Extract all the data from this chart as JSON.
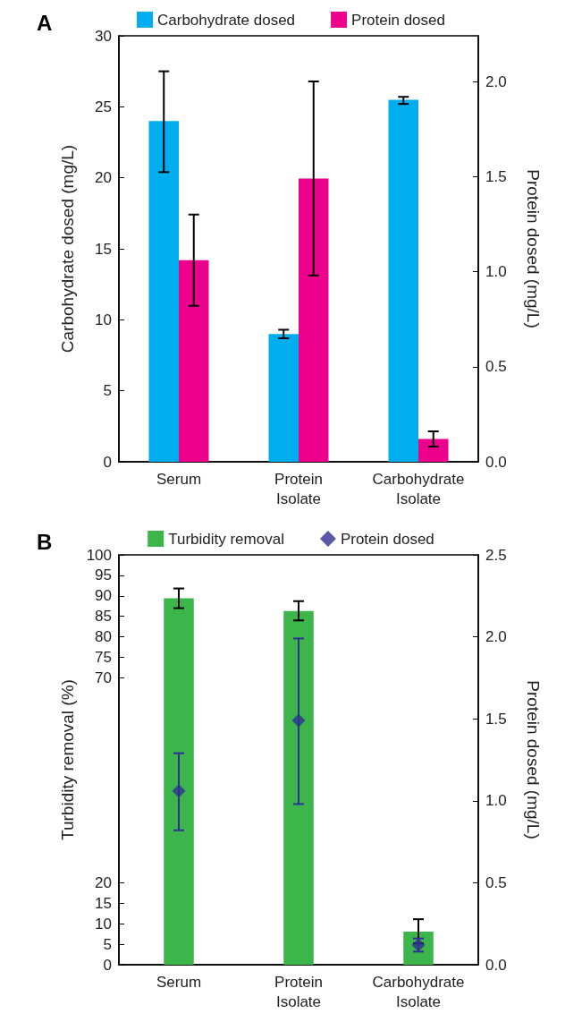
{
  "chart_data": [
    {
      "type": "bar",
      "title": "A",
      "categories": [
        "Serum",
        "Protein Isolate",
        "Carbohydrate Isolate"
      ],
      "ylabel": "Carbohydrate dosed (mg/L)",
      "y2label": "Protein dosed (mg/L)",
      "series": [
        {
          "name": "Carbohydrate dosed",
          "color": "#00aeef",
          "values": [
            24.0,
            9.0,
            25.5
          ],
          "errors": [
            [
              20.4,
              27.5
            ],
            [
              8.7,
              9.3
            ],
            [
              25.2,
              25.7
            ]
          ]
        },
        {
          "name": "Protein dosed",
          "color": "#ec008c",
          "axis": "y2",
          "values": [
            1.06,
            1.49,
            0.12
          ],
          "errors": [
            [
              0.82,
              1.3
            ],
            [
              0.98,
              2.0
            ],
            [
              0.08,
              0.16
            ]
          ]
        }
      ],
      "ylim": [
        0,
        30
      ],
      "yticks": [
        0,
        5,
        10,
        15,
        20,
        25,
        30
      ],
      "y2lim": [
        0,
        2.24
      ],
      "y2ticks": [
        {
          "value": 0,
          "label": "0.0"
        },
        {
          "value": 0.5,
          "label": "0.5"
        },
        {
          "value": 1,
          "label": "1.0"
        },
        {
          "value": 1.5,
          "label": "1.5"
        },
        {
          "value": 2,
          "label": "2.0"
        }
      ],
      "legend": "top",
      "grid": false
    },
    {
      "type": "bar",
      "title": "B",
      "categories": [
        "Serum",
        "Protein Isolate",
        "Carbohydrate Isolate"
      ],
      "ylabel": "Turbidity removal (%)",
      "y2label": "Protein dosed (mg/L)",
      "series": [
        {
          "name": "Turbidity removal",
          "color": "#3cb54a",
          "values": [
            89.4,
            86.3,
            8.1
          ],
          "errors": [
            [
              87.0,
              91.8
            ],
            [
              84.0,
              88.7
            ],
            [
              5.2,
              11.1
            ]
          ]
        },
        {
          "name": "Protein dosed",
          "type": "scatter",
          "color": "#2e3192",
          "axis": "y2",
          "values": [
            1.06,
            1.49,
            0.12
          ],
          "errors": [
            [
              0.82,
              1.29
            ],
            [
              0.98,
              1.99
            ],
            [
              0.08,
              0.16
            ]
          ]
        }
      ],
      "marker": "diamond",
      "ylim": [
        0,
        100
      ],
      "yticks": [
        0,
        5,
        10,
        15,
        20,
        70,
        75,
        80,
        85,
        90,
        95,
        100
      ],
      "y2lim": [
        0,
        2.5
      ],
      "y2ticks": [
        {
          "value": 0,
          "label": "0.0"
        },
        {
          "value": 0.5,
          "label": "0.5"
        },
        {
          "value": 1,
          "label": "1.0"
        },
        {
          "value": 1.5,
          "label": "1.5"
        },
        {
          "value": 2,
          "label": "2.0"
        },
        {
          "value": 2.5,
          "label": "2.5"
        }
      ],
      "legend": "top",
      "grid": false
    }
  ]
}
